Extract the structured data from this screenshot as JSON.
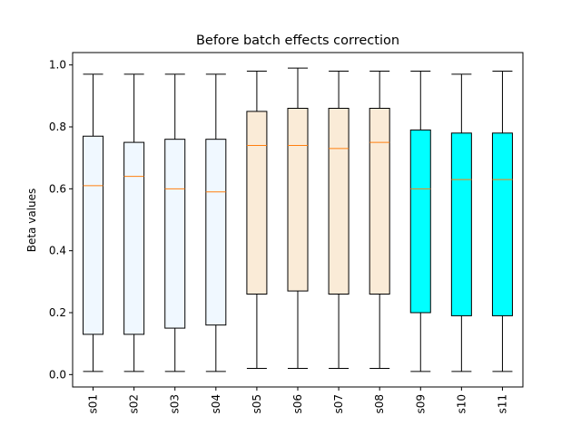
{
  "chart_data": {
    "type": "boxplot",
    "title": "Before batch effects correction",
    "xlabel": "",
    "ylabel": "Beta values",
    "ylim": [
      -0.04,
      1.04
    ],
    "yticks": [
      "0.0",
      "0.2",
      "0.4",
      "0.6",
      "0.8",
      "1.0"
    ],
    "grid": false,
    "median_color": "#ff7f0e",
    "categories": [
      "s01",
      "s02",
      "s03",
      "s04",
      "s05",
      "s06",
      "s07",
      "s08",
      "s09",
      "s10",
      "s11"
    ],
    "boxes": [
      {
        "label": "s01",
        "whisker_low": 0.01,
        "q1": 0.13,
        "median": 0.61,
        "q3": 0.77,
        "whisker_high": 0.97,
        "color": "#f0f8ff"
      },
      {
        "label": "s02",
        "whisker_low": 0.01,
        "q1": 0.13,
        "median": 0.64,
        "q3": 0.75,
        "whisker_high": 0.97,
        "color": "#f0f8ff"
      },
      {
        "label": "s03",
        "whisker_low": 0.01,
        "q1": 0.15,
        "median": 0.6,
        "q3": 0.76,
        "whisker_high": 0.97,
        "color": "#f0f8ff"
      },
      {
        "label": "s04",
        "whisker_low": 0.01,
        "q1": 0.16,
        "median": 0.59,
        "q3": 0.76,
        "whisker_high": 0.97,
        "color": "#f0f8ff"
      },
      {
        "label": "s05",
        "whisker_low": 0.02,
        "q1": 0.26,
        "median": 0.74,
        "q3": 0.85,
        "whisker_high": 0.98,
        "color": "#faebd7"
      },
      {
        "label": "s06",
        "whisker_low": 0.02,
        "q1": 0.27,
        "median": 0.74,
        "q3": 0.86,
        "whisker_high": 0.99,
        "color": "#faebd7"
      },
      {
        "label": "s07",
        "whisker_low": 0.02,
        "q1": 0.26,
        "median": 0.73,
        "q3": 0.86,
        "whisker_high": 0.98,
        "color": "#faebd7"
      },
      {
        "label": "s08",
        "whisker_low": 0.02,
        "q1": 0.26,
        "median": 0.75,
        "q3": 0.86,
        "whisker_high": 0.98,
        "color": "#faebd7"
      },
      {
        "label": "s09",
        "whisker_low": 0.01,
        "q1": 0.2,
        "median": 0.6,
        "q3": 0.79,
        "whisker_high": 0.98,
        "color": "#00ffff"
      },
      {
        "label": "s10",
        "whisker_low": 0.01,
        "q1": 0.19,
        "median": 0.63,
        "q3": 0.78,
        "whisker_high": 0.97,
        "color": "#00ffff"
      },
      {
        "label": "s11",
        "whisker_low": 0.01,
        "q1": 0.19,
        "median": 0.63,
        "q3": 0.78,
        "whisker_high": 0.98,
        "color": "#00ffff"
      }
    ]
  }
}
